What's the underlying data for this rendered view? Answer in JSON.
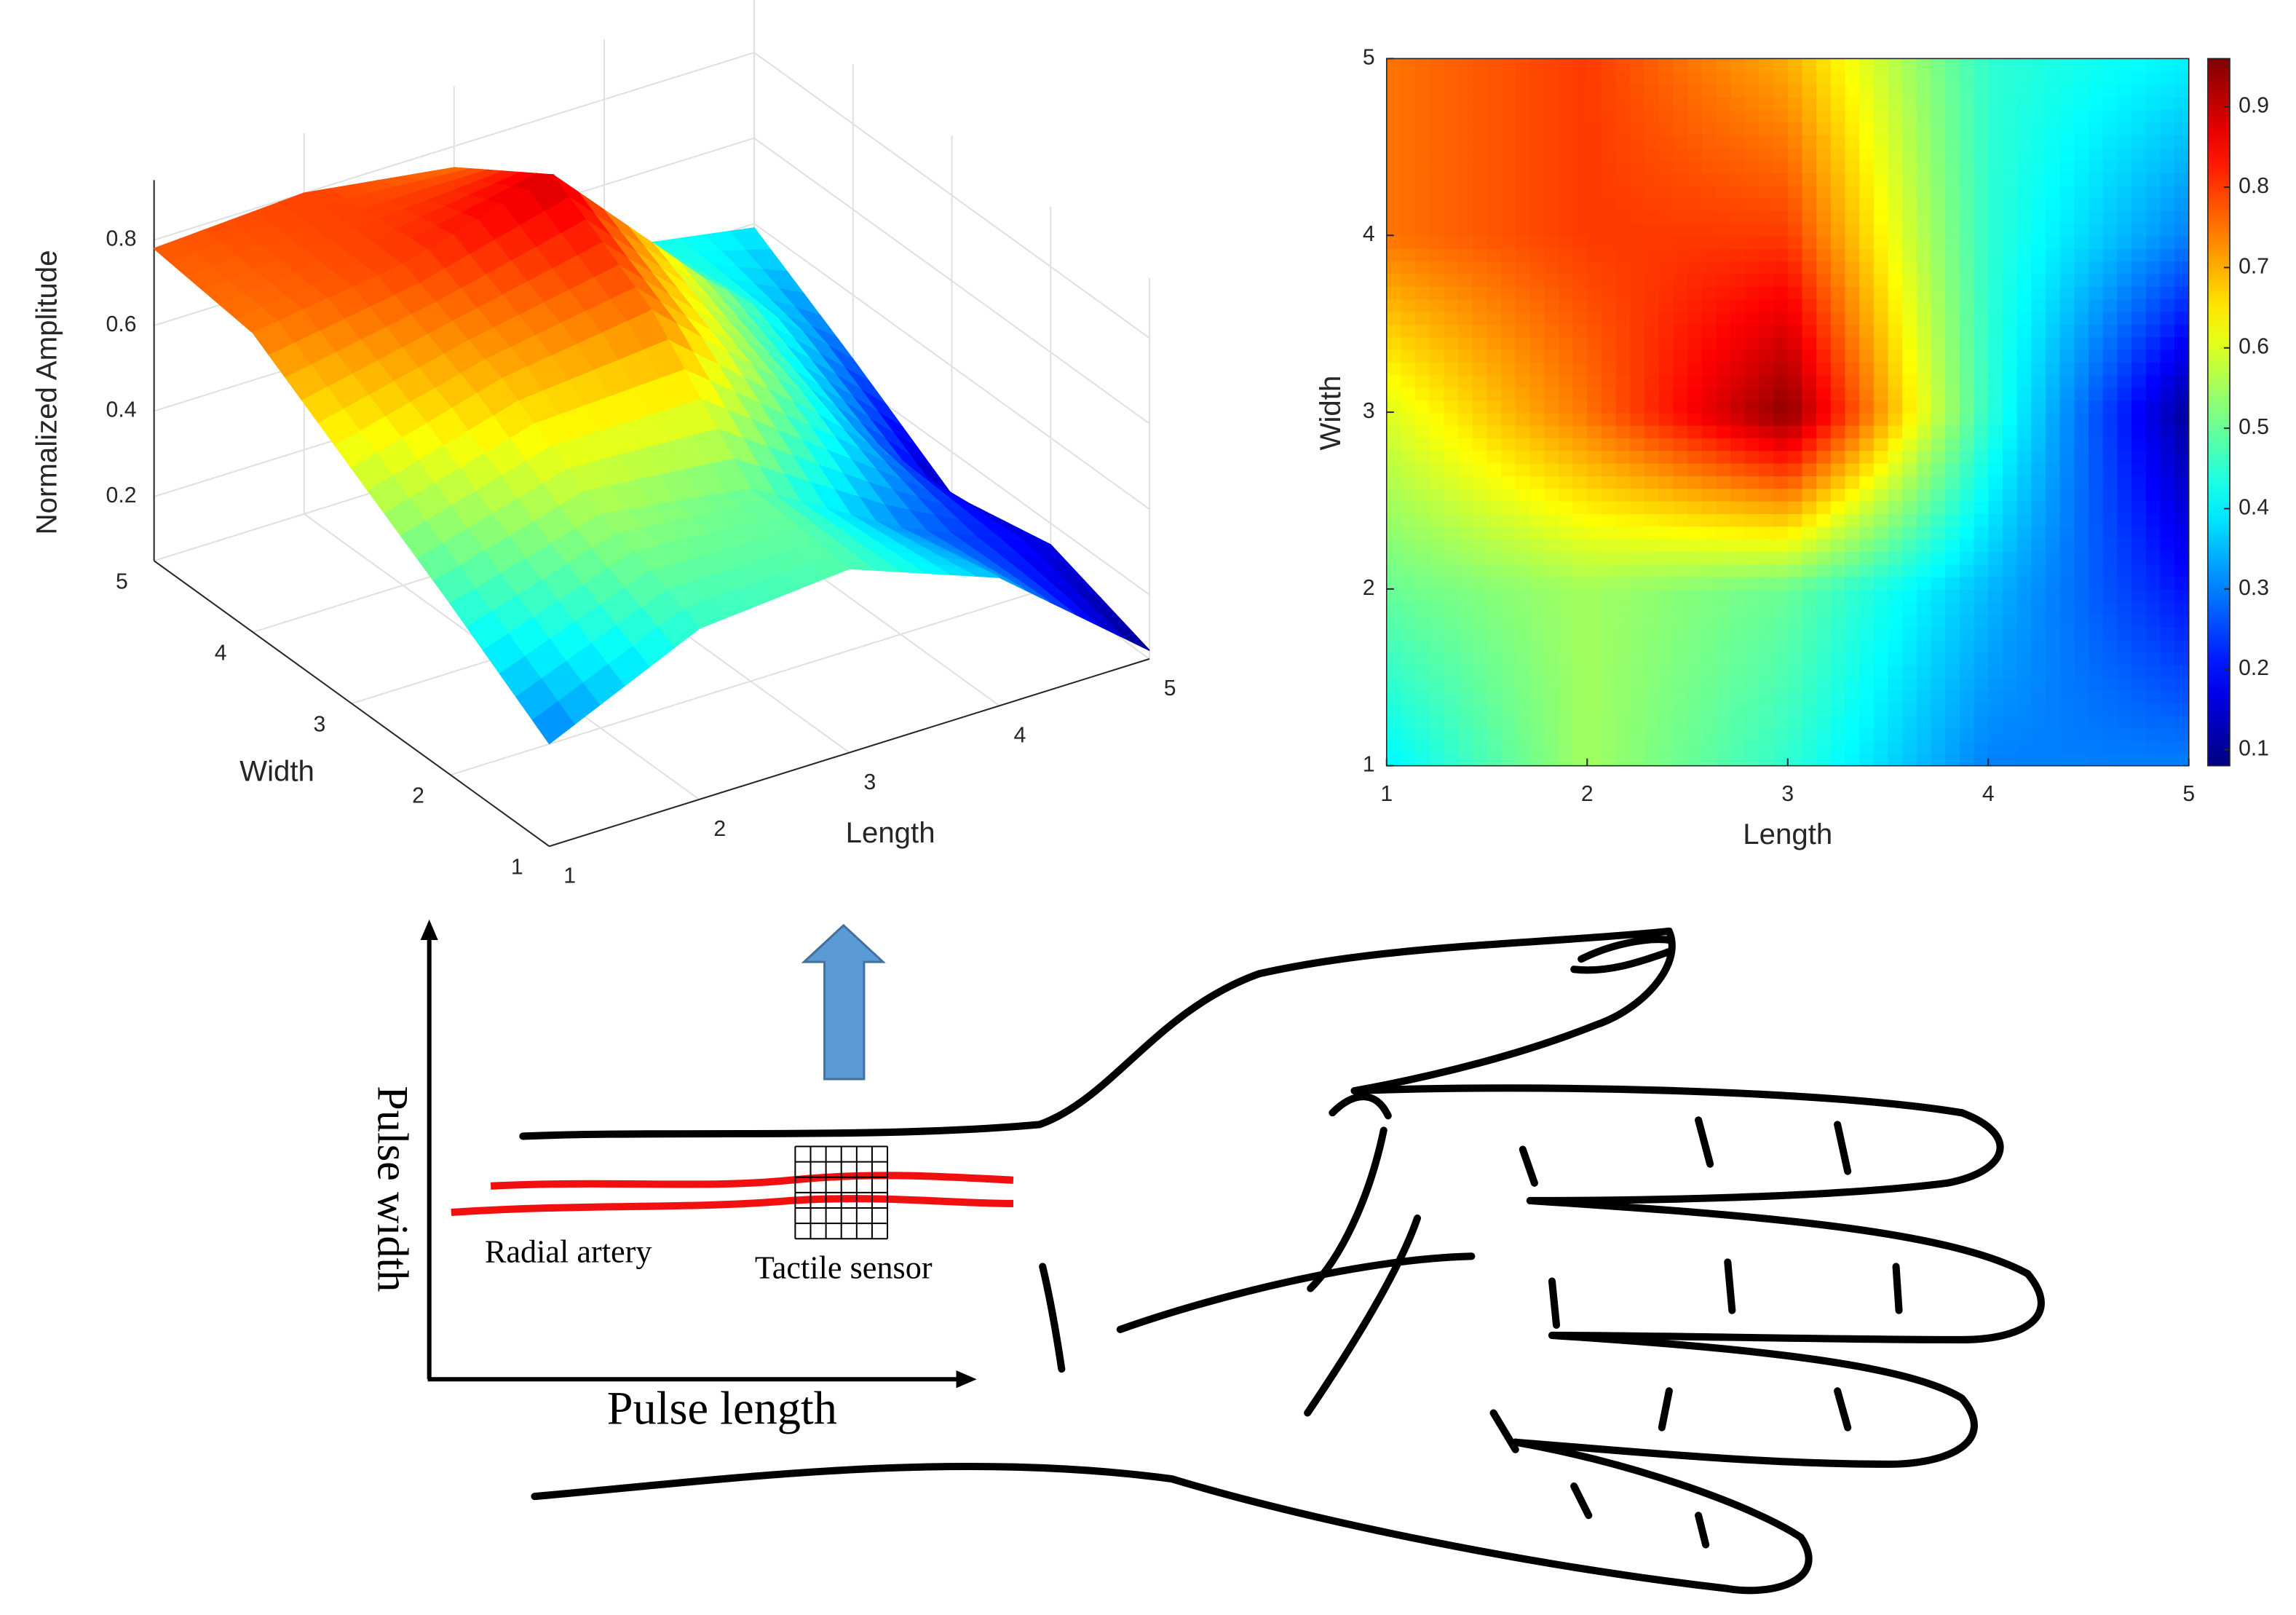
{
  "chart_data": [
    {
      "type": "surface",
      "xlabel": "Length",
      "ylabel": "Width",
      "zlabel": "Normalized Amplitude",
      "x": [
        1,
        2,
        3,
        4,
        5
      ],
      "y": [
        1,
        2,
        3,
        4,
        5
      ],
      "z": [
        [
          0.29,
          0.45,
          0.48,
          0.35,
          0.07
        ],
        [
          0.45,
          0.55,
          0.5,
          0.3,
          0.15
        ],
        [
          0.6,
          0.7,
          0.75,
          0.45,
          0.1
        ],
        [
          0.75,
          0.8,
          0.9,
          0.55,
          0.25
        ],
        [
          0.78,
          0.8,
          0.75,
          0.45,
          0.39
        ]
      ],
      "xlim": [
        1,
        5
      ],
      "ylim": [
        1,
        5
      ],
      "zlim": [
        0.05,
        0.94
      ],
      "xticks": [
        1,
        2,
        3,
        4,
        5
      ],
      "yticks": [
        1,
        2,
        3,
        4,
        5
      ],
      "zticks": [
        0.2,
        0.4,
        0.6,
        0.8
      ],
      "clim": [
        0.07,
        0.97
      ],
      "colormap": "jet",
      "grid": true
    },
    {
      "type": "heatmap",
      "xlabel": "Length",
      "ylabel": "Width",
      "x": [
        1,
        2,
        3,
        4,
        5
      ],
      "y": [
        1,
        2,
        3,
        4,
        5
      ],
      "z": [
        [
          0.4,
          0.55,
          0.45,
          0.3,
          0.3
        ],
        [
          0.5,
          0.55,
          0.5,
          0.35,
          0.2
        ],
        [
          0.6,
          0.75,
          0.95,
          0.45,
          0.1
        ],
        [
          0.75,
          0.8,
          0.8,
          0.45,
          0.3
        ],
        [
          0.75,
          0.8,
          0.7,
          0.45,
          0.4
        ]
      ],
      "xlim": [
        1,
        5
      ],
      "ylim": [
        1,
        5
      ],
      "xticks": [
        1,
        2,
        3,
        4,
        5
      ],
      "yticks": [
        1,
        2,
        3,
        4,
        5
      ],
      "clim": [
        0.08,
        0.96
      ],
      "cticks": [
        0.1,
        0.2,
        0.3,
        0.4,
        0.5,
        0.6,
        0.7,
        0.8,
        0.9
      ],
      "colormap": "jet"
    }
  ],
  "diagram": {
    "y_axis_label": "Pulse width",
    "x_axis_label": "Pulse length",
    "artery_label": "Radial artery",
    "sensor_label": "Tactile sensor"
  }
}
